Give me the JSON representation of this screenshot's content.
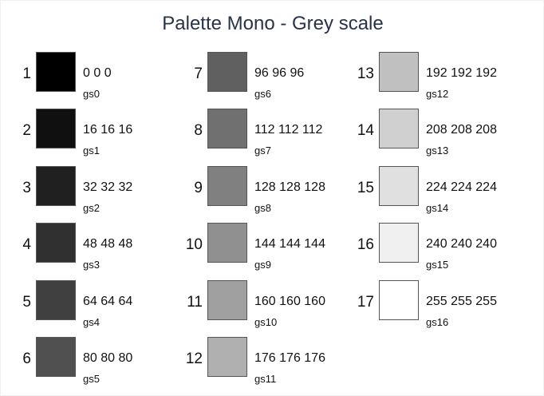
{
  "title": "Palette Mono - Grey scale",
  "swatches": [
    {
      "index": "1",
      "rgb": "0 0 0",
      "name": "gs0",
      "color": "#000000"
    },
    {
      "index": "2",
      "rgb": "16 16 16",
      "name": "gs1",
      "color": "#101010"
    },
    {
      "index": "3",
      "rgb": "32 32 32",
      "name": "gs2",
      "color": "#202020"
    },
    {
      "index": "4",
      "rgb": "48 48 48",
      "name": "gs3",
      "color": "#303030"
    },
    {
      "index": "5",
      "rgb": "64 64 64",
      "name": "gs4",
      "color": "#404040"
    },
    {
      "index": "6",
      "rgb": "80 80 80",
      "name": "gs5",
      "color": "#505050"
    },
    {
      "index": "7",
      "rgb": "96 96 96",
      "name": "gs6",
      "color": "#606060"
    },
    {
      "index": "8",
      "rgb": "112 112 112",
      "name": "gs7",
      "color": "#707070"
    },
    {
      "index": "9",
      "rgb": "128 128 128",
      "name": "gs8",
      "color": "#808080"
    },
    {
      "index": "10",
      "rgb": "144 144 144",
      "name": "gs9",
      "color": "#909090"
    },
    {
      "index": "11",
      "rgb": "160 160 160",
      "name": "gs10",
      "color": "#a0a0a0"
    },
    {
      "index": "12",
      "rgb": "176 176 176",
      "name": "gs11",
      "color": "#b0b0b0"
    },
    {
      "index": "13",
      "rgb": "192 192 192",
      "name": "gs12",
      "color": "#c0c0c0"
    },
    {
      "index": "14",
      "rgb": "208 208 208",
      "name": "gs13",
      "color": "#d0d0d0"
    },
    {
      "index": "15",
      "rgb": "224 224 224",
      "name": "gs14",
      "color": "#e0e0e0"
    },
    {
      "index": "16",
      "rgb": "240 240 240",
      "name": "gs15",
      "color": "#f0f0f0"
    },
    {
      "index": "17",
      "rgb": "255 255 255",
      "name": "gs16",
      "color": "#ffffff"
    }
  ]
}
